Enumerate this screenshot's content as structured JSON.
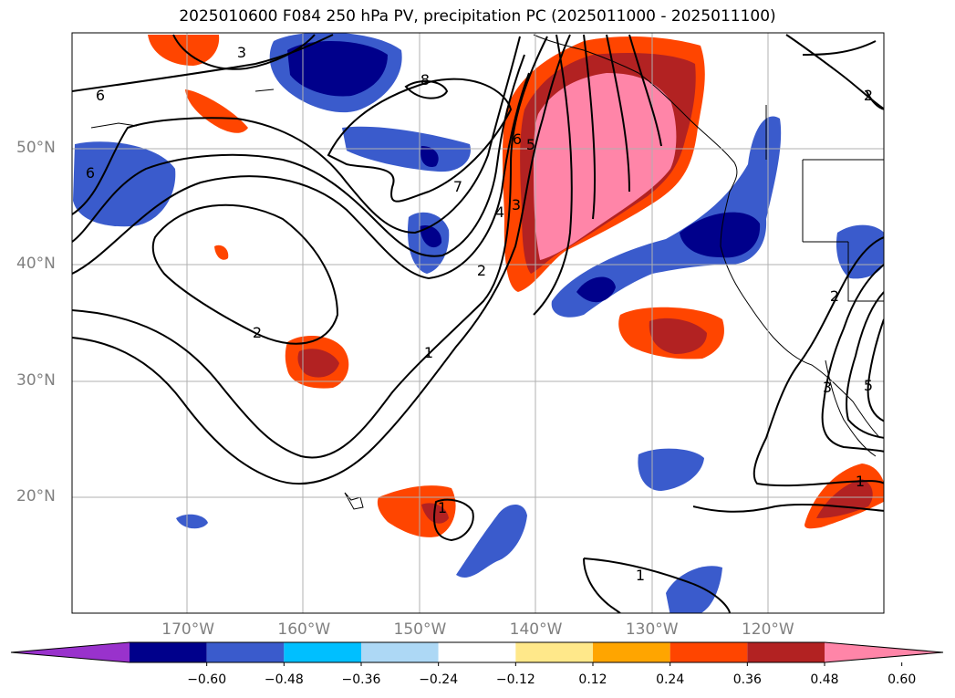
{
  "title": "2025010600 F084 250 hPa PV, precipitation PC (2025011000 - 2025011100)",
  "map": {
    "lat_labels": [
      {
        "text": "50°N",
        "lat": 50
      },
      {
        "text": "40°N",
        "lat": 40
      },
      {
        "text": "30°N",
        "lat": 30
      },
      {
        "text": "20°N",
        "lat": 20
      }
    ],
    "lon_labels": [
      {
        "text": "170°W",
        "lon": -170
      },
      {
        "text": "160°W",
        "lon": -160
      },
      {
        "text": "150°W",
        "lon": -150
      },
      {
        "text": "140°W",
        "lon": -140
      },
      {
        "text": "130°W",
        "lon": -130
      },
      {
        "text": "120°W",
        "lon": -120
      }
    ],
    "contour_labels": [
      "6",
      "3",
      "8",
      "6",
      "7",
      "4",
      "3",
      "6",
      "5",
      "2",
      "1",
      "2",
      "1",
      "1",
      "1",
      "2",
      "3",
      "5",
      "2"
    ]
  },
  "colorbar": {
    "ticks": [
      "−0.60",
      "−0.48",
      "−0.36",
      "−0.24",
      "−0.12",
      "0.12",
      "0.24",
      "0.36",
      "0.48",
      "0.60"
    ],
    "colors": [
      "#9932cc",
      "#00008b",
      "#3a5bcc",
      "#00bfff",
      "#add8f5",
      "#ffffff",
      "#ffe88a",
      "#ffa500",
      "#ff4500",
      "#b22222",
      "#ff85a8"
    ]
  }
}
